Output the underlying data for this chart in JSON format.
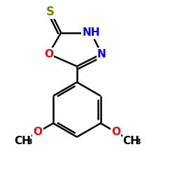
{
  "bg_color": "#ffffff",
  "bond_color": "#000000",
  "S_color": "#808000",
  "O_color": "#ff0000",
  "N_color": "#0000ff",
  "C_color": "#000000",
  "bond_width": 1.8,
  "font_size_atom": 11,
  "font_size_subscript": 8,
  "xlim": [
    0.05,
    0.95
  ],
  "ylim": [
    0.02,
    1.0
  ],
  "figsize": [
    2.5,
    2.5
  ],
  "dpi": 100
}
